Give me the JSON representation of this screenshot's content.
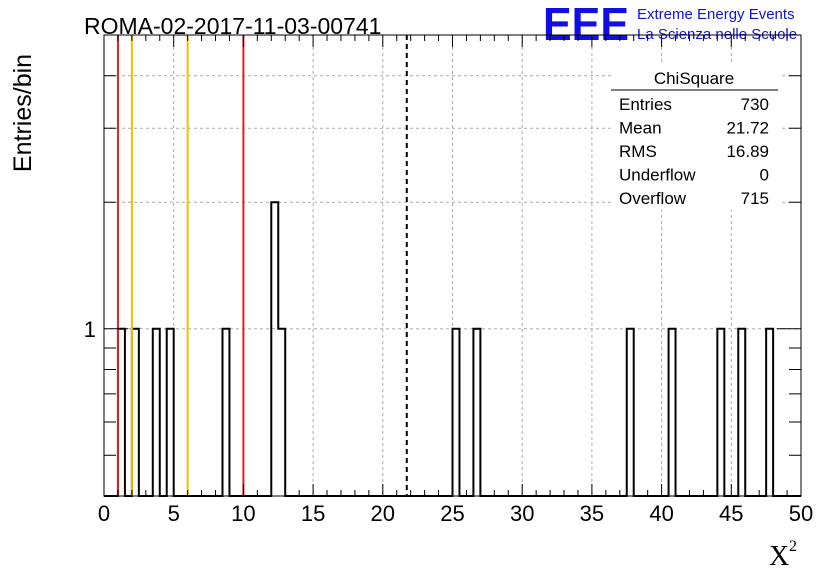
{
  "title": "ROMA-02-2017-11-03-00741",
  "logo": {
    "mark": "EEE",
    "line1": "Extreme Energy Events",
    "line2": "La Scienza nelle Scuole",
    "color": "#1010e6"
  },
  "stats": {
    "name": "ChiSquare",
    "rows": [
      {
        "label": "Entries",
        "value": "730"
      },
      {
        "label": "Mean",
        "value": "21.72"
      },
      {
        "label": "RMS",
        "value": "16.89"
      },
      {
        "label": "Underflow",
        "value": "0"
      },
      {
        "label": "Overflow",
        "value": "715"
      }
    ]
  },
  "chart_data": {
    "type": "bar",
    "title": "ROMA-02-2017-11-03-00741",
    "xlabel": "X",
    "xlabel_superscript": "2",
    "ylabel": "Entries/bin",
    "xlim": [
      0,
      50
    ],
    "ylim": [
      0.4,
      5
    ],
    "yscale": "log",
    "grid": true,
    "x_ticks": [
      0,
      5,
      10,
      15,
      20,
      25,
      30,
      35,
      40,
      45,
      50
    ],
    "y_tick_labels": [
      {
        "value": 1,
        "label": "1"
      }
    ],
    "bin_width": 0.5,
    "bins": [
      {
        "x": 1.0,
        "count": 1
      },
      {
        "x": 2.0,
        "count": 1
      },
      {
        "x": 3.5,
        "count": 1
      },
      {
        "x": 4.5,
        "count": 1
      },
      {
        "x": 8.5,
        "count": 1
      },
      {
        "x": 12.0,
        "count": 2
      },
      {
        "x": 12.5,
        "count": 1
      },
      {
        "x": 25.0,
        "count": 1
      },
      {
        "x": 26.5,
        "count": 1
      },
      {
        "x": 37.5,
        "count": 1
      },
      {
        "x": 40.5,
        "count": 1
      },
      {
        "x": 44.0,
        "count": 1
      },
      {
        "x": 45.5,
        "count": 1
      },
      {
        "x": 47.5,
        "count": 1
      }
    ],
    "vertical_lines": [
      {
        "x": 1.0,
        "color": "#e02020",
        "style": "solid"
      },
      {
        "x": 2.0,
        "color": "#f0c000",
        "style": "solid"
      },
      {
        "x": 6.0,
        "color": "#f0c000",
        "style": "solid"
      },
      {
        "x": 10.0,
        "color": "#e02020",
        "style": "solid"
      },
      {
        "x": 21.72,
        "color": "#000000",
        "style": "dashed"
      }
    ],
    "colors": {
      "histogram": "#000000",
      "grid": "#aaaaaa"
    }
  }
}
